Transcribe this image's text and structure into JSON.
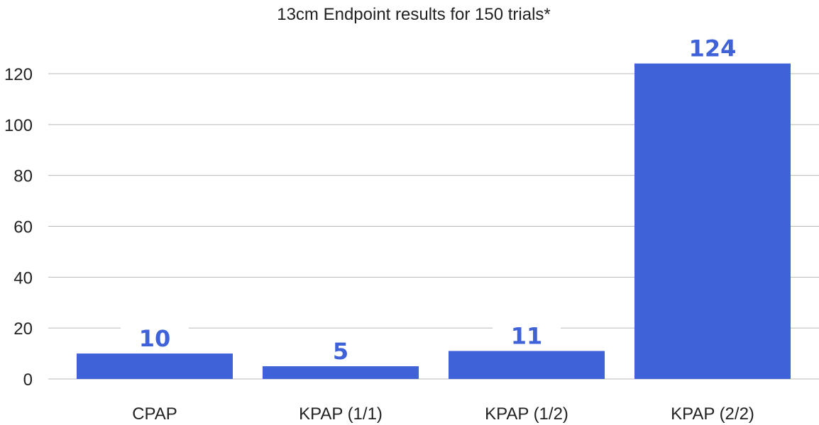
{
  "chart_data": {
    "type": "bar",
    "title": "13cm Endpoint results for 150 trials*",
    "categories": [
      "CPAP",
      "KPAP (1/1)",
      "KPAP (1/2)",
      "KPAP (2/2)"
    ],
    "values": [
      10,
      5,
      11,
      124
    ],
    "data_labels": [
      "10",
      "5",
      "11",
      "124"
    ],
    "ylim": [
      0,
      130
    ],
    "yticks": [
      0,
      20,
      40,
      60,
      80,
      100,
      120
    ],
    "ytick_labels": [
      "0",
      "20",
      "40",
      "60",
      "80",
      "100",
      "120"
    ],
    "grid": true,
    "legend": "none",
    "colors": {
      "bar": "#3f62d9",
      "label": "#3f62d9"
    }
  }
}
